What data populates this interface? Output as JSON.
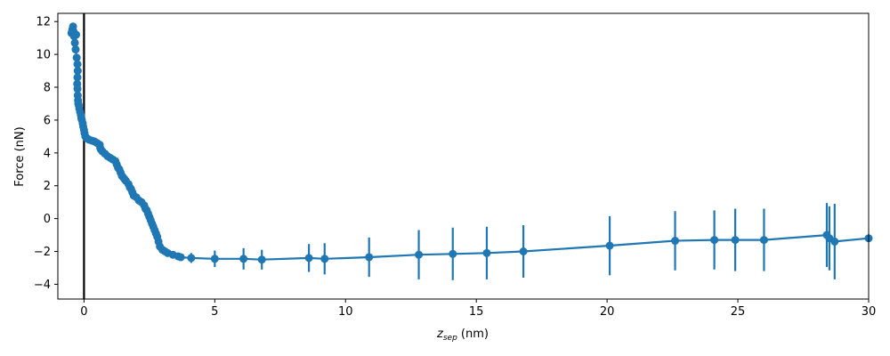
{
  "chart_data": {
    "type": "scatter",
    "title": "",
    "xlabel_main": "z",
    "xlabel_sub": "sep",
    "xlabel_unit": " (nm)",
    "ylabel": "Force (nN)",
    "xlim": [
      -1,
      30
    ],
    "ylim": [
      -4.9,
      12.5
    ],
    "xticks": [
      0,
      5,
      10,
      15,
      20,
      25,
      30
    ],
    "yticks": [
      -4,
      -2,
      0,
      2,
      4,
      6,
      8,
      10,
      12
    ],
    "grid": false,
    "vertical_line_x": 0,
    "series_color": "#1f77b4",
    "series": [
      {
        "x": [
          -0.48,
          -0.45,
          -0.42,
          -0.4,
          -0.38,
          -0.35,
          -0.3,
          -0.32,
          -0.28,
          -0.25,
          -0.24,
          -0.25,
          -0.26,
          -0.25,
          -0.24,
          -0.23,
          -0.22,
          -0.2,
          -0.18,
          -0.15,
          -0.12,
          -0.1,
          -0.08,
          -0.05,
          -0.03,
          0.0,
          0.02,
          0.05,
          0.1,
          0.15,
          0.2,
          0.3,
          0.4,
          0.5,
          0.6,
          0.62,
          0.65,
          0.7,
          0.8,
          0.9,
          1.0,
          1.1,
          1.2,
          1.25,
          1.3,
          1.35,
          1.4,
          1.45,
          1.5,
          1.55,
          1.6,
          1.7,
          1.75,
          1.8,
          1.85,
          1.9,
          2.0,
          2.1,
          2.2,
          2.3,
          2.35,
          2.4,
          2.45,
          2.5,
          2.55,
          2.6,
          2.65,
          2.7,
          2.75,
          2.8,
          2.85,
          2.9,
          3.0,
          3.1,
          3.2,
          3.4,
          3.6,
          3.7,
          4.1,
          5.0,
          6.1,
          6.8,
          8.6,
          9.2,
          10.9,
          12.8,
          14.1,
          15.4,
          16.8,
          20.1,
          22.6,
          24.1,
          24.9,
          26.0,
          28.4,
          28.5,
          28.7,
          30.0
        ],
        "y": [
          11.3,
          11.5,
          11.7,
          11.4,
          11.1,
          10.7,
          11.2,
          10.3,
          9.8,
          9.4,
          9.0,
          8.6,
          8.2,
          7.9,
          7.5,
          7.2,
          7.0,
          6.9,
          6.7,
          6.5,
          6.3,
          6.1,
          6.0,
          5.8,
          5.6,
          5.4,
          5.2,
          5.0,
          4.9,
          4.85,
          4.8,
          4.75,
          4.7,
          4.6,
          4.5,
          4.3,
          4.2,
          4.1,
          3.95,
          3.8,
          3.7,
          3.6,
          3.5,
          3.3,
          3.1,
          3.0,
          2.8,
          2.6,
          2.5,
          2.4,
          2.3,
          2.1,
          1.9,
          1.8,
          1.6,
          1.4,
          1.3,
          1.1,
          1.0,
          0.8,
          0.6,
          0.5,
          0.3,
          0.1,
          -0.1,
          -0.3,
          -0.5,
          -0.7,
          -0.9,
          -1.1,
          -1.4,
          -1.7,
          -1.9,
          -2.0,
          -2.1,
          -2.2,
          -2.3,
          -2.35,
          -2.4,
          -2.45,
          -2.45,
          -2.5,
          -2.4,
          -2.45,
          -2.35,
          -2.2,
          -2.15,
          -2.1,
          -2.0,
          -1.65,
          -1.35,
          -1.3,
          -1.3,
          -1.3,
          -1.0,
          -1.2,
          -1.4,
          -1.2
        ],
        "err": [
          0,
          0,
          0,
          0,
          0,
          0,
          0,
          0,
          0,
          0,
          0,
          0,
          0,
          0,
          0,
          0,
          0,
          0,
          0,
          0,
          0,
          0,
          0,
          0,
          0,
          0,
          0,
          0,
          0,
          0,
          0,
          0,
          0,
          0,
          0,
          0,
          0,
          0,
          0,
          0,
          0,
          0,
          0,
          0,
          0,
          0,
          0,
          0,
          0,
          0,
          0,
          0,
          0,
          0,
          0,
          0,
          0,
          0,
          0,
          0,
          0,
          0,
          0,
          0,
          0,
          0,
          0,
          0,
          0,
          0,
          0,
          0,
          0,
          0,
          0,
          0,
          0,
          0,
          0.3,
          0.5,
          0.65,
          0.6,
          0.85,
          0.95,
          1.2,
          1.5,
          1.6,
          1.6,
          1.6,
          1.8,
          1.8,
          1.8,
          1.9,
          1.9,
          1.95,
          1.95,
          2.3,
          0
        ]
      }
    ]
  }
}
